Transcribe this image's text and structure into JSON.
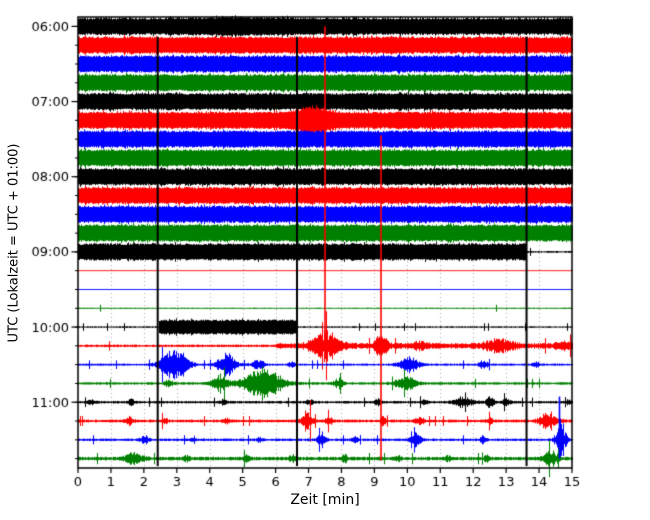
{
  "chart_data": {
    "type": "line",
    "kind": "seismogram-dayplot",
    "title": "",
    "xlabel": "Zeit [min]",
    "ylabel": "UTC (Lokalzeit = UTC + 01:00)",
    "x_min": 0,
    "x_max": 15,
    "x_ticks": [
      0,
      1,
      2,
      3,
      4,
      5,
      6,
      7,
      8,
      9,
      10,
      11,
      12,
      13,
      14,
      15
    ],
    "minutes_per_row": 15,
    "color_cycle": [
      "#000000",
      "#ff0000",
      "#0000ff",
      "#008000"
    ],
    "grid": {
      "vertical_dotted_every_min": 1,
      "color": "#aaaaaa"
    },
    "y_hour_rows": [
      {
        "label": "06:00",
        "row": 0
      },
      {
        "label": "07:00",
        "row": 4
      },
      {
        "label": "08:00",
        "row": 8
      },
      {
        "label": "09:00",
        "row": 12
      },
      {
        "label": "10:00",
        "row": 16
      },
      {
        "label": "11:00",
        "row": 20
      }
    ],
    "rows": [
      {
        "time": "06:00",
        "color": "#000000",
        "segments": [
          {
            "x0": 0,
            "x1": 15,
            "amp": 0.46
          }
        ],
        "bursts": [
          {
            "x": 4.8,
            "w": 4.5,
            "amp": 0.08
          }
        ]
      },
      {
        "time": "06:15",
        "color": "#ff0000",
        "segments": [
          {
            "x0": 0,
            "x1": 15,
            "amp": 0.46
          }
        ],
        "bursts": []
      },
      {
        "time": "06:30",
        "color": "#0000ff",
        "segments": [
          {
            "x0": 0,
            "x1": 15,
            "amp": 0.46
          }
        ],
        "bursts": []
      },
      {
        "time": "06:45",
        "color": "#008000",
        "segments": [
          {
            "x0": 0,
            "x1": 15,
            "amp": 0.46
          }
        ],
        "bursts": []
      },
      {
        "time": "07:00",
        "color": "#000000",
        "segments": [
          {
            "x0": 0,
            "x1": 15,
            "amp": 0.46
          }
        ],
        "bursts": []
      },
      {
        "time": "07:15",
        "color": "#ff0000",
        "segments": [
          {
            "x0": 0,
            "x1": 15,
            "amp": 0.46
          }
        ],
        "bursts": [
          {
            "x": 7.1,
            "w": 1.5,
            "amp": 0.4
          }
        ]
      },
      {
        "time": "07:30",
        "color": "#0000ff",
        "segments": [
          {
            "x0": 0,
            "x1": 15,
            "amp": 0.46
          }
        ],
        "bursts": []
      },
      {
        "time": "07:45",
        "color": "#008000",
        "segments": [
          {
            "x0": 0,
            "x1": 15,
            "amp": 0.46
          }
        ],
        "bursts": []
      },
      {
        "time": "08:00",
        "color": "#000000",
        "segments": [
          {
            "x0": 0,
            "x1": 15,
            "amp": 0.46
          }
        ],
        "bursts": []
      },
      {
        "time": "08:15",
        "color": "#ff0000",
        "segments": [
          {
            "x0": 0,
            "x1": 15,
            "amp": 0.46
          }
        ],
        "bursts": []
      },
      {
        "time": "08:30",
        "color": "#0000ff",
        "segments": [
          {
            "x0": 0,
            "x1": 15,
            "amp": 0.46
          }
        ],
        "bursts": []
      },
      {
        "time": "08:45",
        "color": "#008000",
        "segments": [
          {
            "x0": 0,
            "x1": 15,
            "amp": 0.46
          }
        ],
        "bursts": []
      },
      {
        "time": "09:00",
        "color": "#000000",
        "segments": [
          {
            "x0": 0,
            "x1": 13.6,
            "amp": 0.46
          },
          {
            "x0": 13.6,
            "x1": 15,
            "amp": 0.05
          }
        ],
        "bursts": [],
        "speckle": 0.008
      },
      {
        "time": "09:15",
        "color": "#ff0000",
        "segments": [
          {
            "x0": 0,
            "x1": 15,
            "amp": 0.025
          }
        ],
        "bursts": [],
        "speckle": 0.004
      },
      {
        "time": "09:30",
        "color": "#0000ff",
        "segments": [
          {
            "x0": 0,
            "x1": 15,
            "amp": 0.025
          }
        ],
        "bursts": [],
        "speckle": 0.004
      },
      {
        "time": "09:45",
        "color": "#008000",
        "segments": [
          {
            "x0": 0,
            "x1": 15,
            "amp": 0.035
          }
        ],
        "bursts": [],
        "speckle": 0.005
      },
      {
        "time": "10:00",
        "color": "#000000",
        "segments": [
          {
            "x0": 0,
            "x1": 2.45,
            "amp": 0.045
          },
          {
            "x0": 2.45,
            "x1": 6.65,
            "amp": 0.4
          },
          {
            "x0": 6.65,
            "x1": 15,
            "amp": 0.045
          }
        ],
        "bursts": [],
        "speckle": 0.02
      },
      {
        "time": "10:15",
        "color": "#ff0000",
        "segments": [
          {
            "x0": 0,
            "x1": 6,
            "amp": 0.07
          },
          {
            "x0": 6,
            "x1": 15,
            "amp": 0.16
          }
        ],
        "bursts": [
          {
            "x": 7.5,
            "w": 1.2,
            "amp": 0.85
          },
          {
            "x": 9.2,
            "w": 0.5,
            "amp": 0.85
          },
          {
            "x": 12.8,
            "w": 1.2,
            "amp": 0.38
          },
          {
            "x": 10.4,
            "w": 0.5,
            "amp": 0.22
          },
          {
            "x": 14.75,
            "w": 0.6,
            "amp": 0.3
          }
        ],
        "speckle": 0.015
      },
      {
        "time": "10:30",
        "color": "#0000ff",
        "segments": [
          {
            "x0": 0,
            "x1": 15,
            "amp": 0.06
          }
        ],
        "bursts": [
          {
            "x": 2.9,
            "w": 1.1,
            "amp": 1.1
          },
          {
            "x": 4.5,
            "w": 0.8,
            "amp": 0.8
          },
          {
            "x": 5.45,
            "w": 0.5,
            "amp": 0.38
          },
          {
            "x": 6.5,
            "w": 0.3,
            "amp": 0.2
          },
          {
            "x": 10.05,
            "w": 0.9,
            "amp": 0.48
          },
          {
            "x": 12.3,
            "w": 0.4,
            "amp": 0.27
          },
          {
            "x": 13.9,
            "w": 0.3,
            "amp": 0.18
          }
        ],
        "speckle": 0.015
      },
      {
        "time": "10:45",
        "color": "#008000",
        "segments": [
          {
            "x0": 0,
            "x1": 15,
            "amp": 0.07
          }
        ],
        "bursts": [
          {
            "x": 2.75,
            "w": 0.4,
            "amp": 0.18
          },
          {
            "x": 4.3,
            "w": 0.7,
            "amp": 0.5
          },
          {
            "x": 5.6,
            "w": 1.7,
            "amp": 1.0
          },
          {
            "x": 7.9,
            "w": 0.4,
            "amp": 0.3
          },
          {
            "x": 9.95,
            "w": 0.9,
            "amp": 0.45
          }
        ],
        "speckle": 0.015
      },
      {
        "time": "11:00",
        "color": "#000000",
        "segments": [
          {
            "x0": 0,
            "x1": 15,
            "amp": 0.07
          }
        ],
        "bursts": [
          {
            "x": 0.4,
            "w": 0.3,
            "amp": 0.18
          },
          {
            "x": 1.6,
            "w": 0.3,
            "amp": 0.18
          },
          {
            "x": 4.4,
            "w": 0.3,
            "amp": 0.16
          },
          {
            "x": 7.0,
            "w": 0.3,
            "amp": 0.2
          },
          {
            "x": 9.1,
            "w": 0.3,
            "amp": 0.18
          },
          {
            "x": 10.5,
            "w": 0.3,
            "amp": 0.2
          },
          {
            "x": 11.7,
            "w": 0.9,
            "amp": 0.28
          },
          {
            "x": 12.5,
            "w": 0.3,
            "amp": 0.42
          },
          {
            "x": 13.0,
            "w": 0.3,
            "amp": 0.26
          },
          {
            "x": 14.9,
            "w": 0.2,
            "amp": 0.18
          }
        ],
        "speckle": 0.04
      },
      {
        "time": "11:15",
        "color": "#ff0000",
        "segments": [
          {
            "x0": 0,
            "x1": 15,
            "amp": 0.08
          }
        ],
        "bursts": [
          {
            "x": 1.55,
            "w": 0.35,
            "amp": 0.26
          },
          {
            "x": 2.6,
            "w": 0.3,
            "amp": 0.16
          },
          {
            "x": 4.5,
            "w": 0.3,
            "amp": 0.16
          },
          {
            "x": 6.95,
            "w": 0.45,
            "amp": 0.7
          },
          {
            "x": 7.6,
            "w": 0.3,
            "amp": 0.26
          },
          {
            "x": 9.25,
            "w": 0.25,
            "amp": 0.35
          },
          {
            "x": 10.35,
            "w": 0.35,
            "amp": 0.26
          },
          {
            "x": 12.5,
            "w": 0.3,
            "amp": 0.2
          },
          {
            "x": 14.3,
            "w": 0.8,
            "amp": 0.5
          }
        ],
        "speckle": 0.025
      },
      {
        "time": "11:30",
        "color": "#0000ff",
        "segments": [
          {
            "x0": 0,
            "x1": 15,
            "amp": 0.07
          }
        ],
        "bursts": [
          {
            "x": 2.0,
            "w": 0.35,
            "amp": 0.3
          },
          {
            "x": 3.5,
            "w": 0.25,
            "amp": 0.16
          },
          {
            "x": 5.5,
            "w": 0.25,
            "amp": 0.16
          },
          {
            "x": 7.4,
            "w": 0.35,
            "amp": 0.42
          },
          {
            "x": 8.4,
            "w": 0.25,
            "amp": 0.2
          },
          {
            "x": 10.25,
            "w": 0.45,
            "amp": 0.42
          },
          {
            "x": 12.3,
            "w": 0.25,
            "amp": 0.26
          },
          {
            "x": 14.65,
            "w": 0.45,
            "amp": 1.1
          }
        ],
        "speckle": 0.025
      },
      {
        "time": "11:45",
        "color": "#008000",
        "segments": [
          {
            "x0": 0,
            "x1": 15,
            "amp": 0.1
          }
        ],
        "bursts": [
          {
            "x": 1.7,
            "w": 0.7,
            "amp": 0.38
          },
          {
            "x": 3.3,
            "w": 0.25,
            "amp": 0.16
          },
          {
            "x": 5.1,
            "w": 0.25,
            "amp": 0.16
          },
          {
            "x": 6.5,
            "w": 0.25,
            "amp": 0.2
          },
          {
            "x": 8.1,
            "w": 0.25,
            "amp": 0.26
          },
          {
            "x": 9.7,
            "w": 0.25,
            "amp": 0.16
          },
          {
            "x": 11.2,
            "w": 0.25,
            "amp": 0.16
          },
          {
            "x": 12.4,
            "w": 0.25,
            "amp": 0.2
          },
          {
            "x": 14.35,
            "w": 0.6,
            "amp": 0.42
          }
        ],
        "speckle": 0.03
      }
    ],
    "vlines": [
      {
        "x": 2.42,
        "from": 1.05,
        "to": 23.9,
        "color": "#000000",
        "width": 2
      },
      {
        "x": 6.65,
        "from": 1.05,
        "to": 23.9,
        "color": "#000000",
        "width": 2
      },
      {
        "x": 13.62,
        "from": 1.05,
        "to": 23.9,
        "color": "#000000",
        "width": 2
      }
    ],
    "spikes": [
      {
        "x": 7.5,
        "row": 17,
        "up": 17.0,
        "down": 0.7,
        "color": "#ff0000",
        "width": 1.6
      },
      {
        "x": 9.2,
        "row": 17,
        "up": 11.2,
        "down": 6.1,
        "color": "#ff0000",
        "width": 1.6
      },
      {
        "x": 14.62,
        "row": 22,
        "up": 2.3,
        "down": 1.0,
        "color": "#0000ff",
        "width": 1.6
      }
    ]
  }
}
